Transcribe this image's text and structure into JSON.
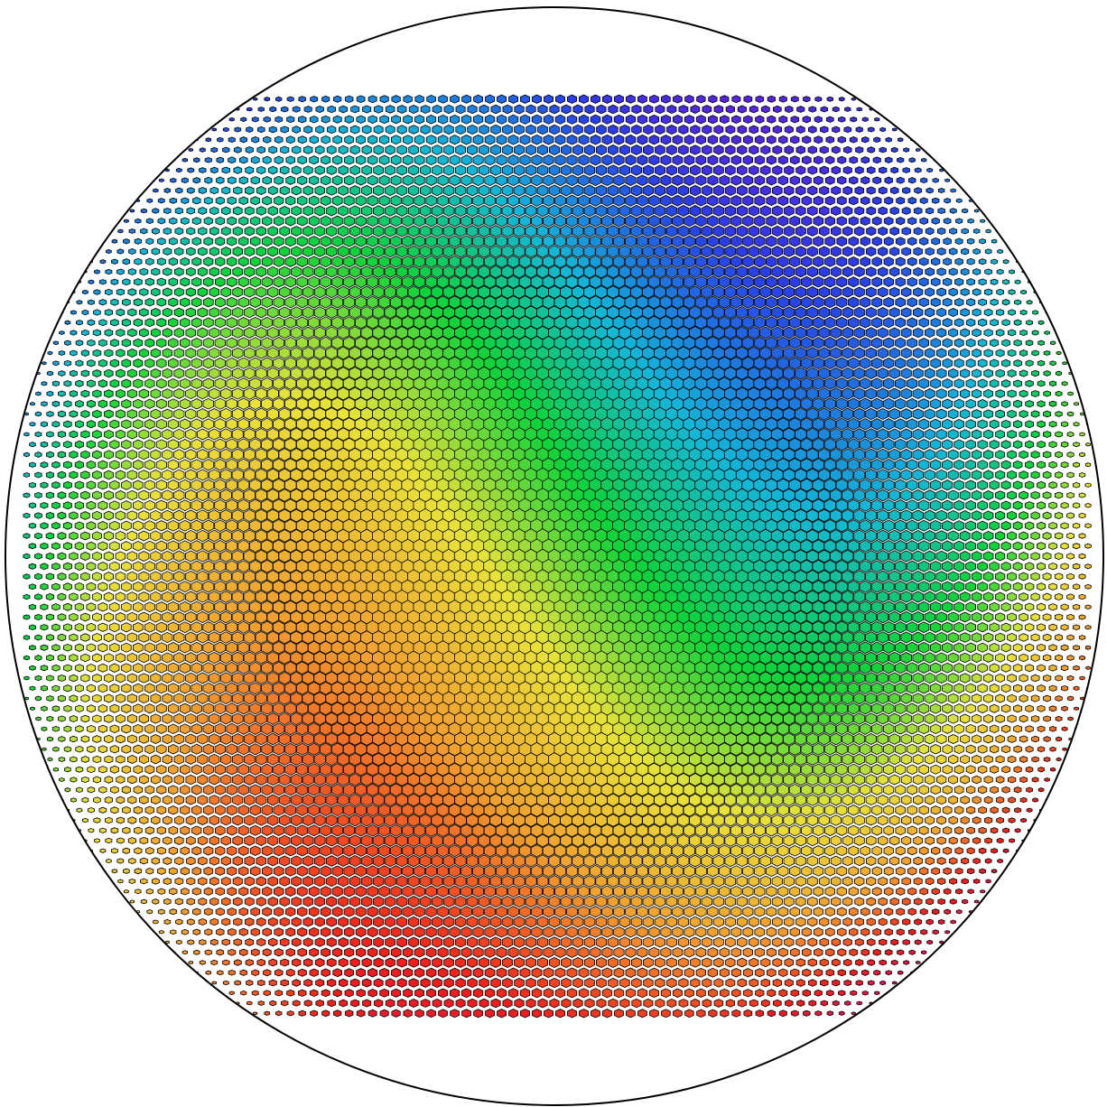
{
  "figure": {
    "subject": "hexagonal-mesh-sphere",
    "background": "#ffffff",
    "outline_color": "#000000",
    "mesh_line_color": "#000000",
    "colormap": [
      "#7a10d8",
      "#2a3ee6",
      "#14b6d6",
      "#10d23a",
      "#e8e23a",
      "#f0a030",
      "#f01c1c",
      "#e0106a"
    ],
    "field_description_hidden": true
  }
}
